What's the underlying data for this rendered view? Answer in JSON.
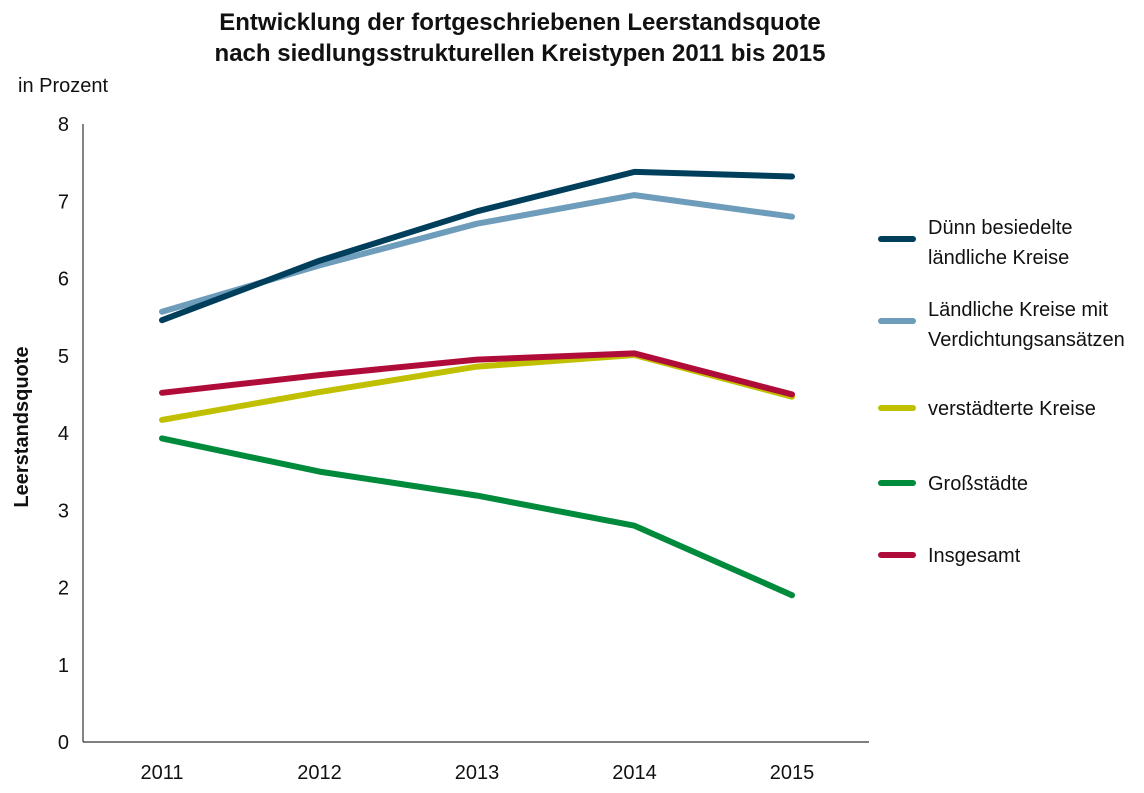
{
  "chart_data": {
    "type": "line",
    "title": [
      "Entwicklung der fortgeschriebenen Leerstandsquote",
      "nach siedlungsstrukturellen Kreistypen 2011 bis 2015"
    ],
    "unit_label": "in Prozent",
    "ylabel": "Leerstandsquote",
    "xlabel": "",
    "x": [
      "2011",
      "2012",
      "2013",
      "2014",
      "2015"
    ],
    "yticks": [
      "0",
      "1",
      "2",
      "3",
      "4",
      "5",
      "6",
      "7",
      "8"
    ],
    "ylim": [
      0,
      8
    ],
    "grid": false,
    "legend_position": "right",
    "series": [
      {
        "name": [
          "Dünn besiedelte",
          "ländliche Kreise"
        ],
        "color": "#003f5c",
        "values": [
          5.46,
          6.23,
          6.87,
          7.38,
          7.32
        ]
      },
      {
        "name": [
          "Ländliche Kreise mit",
          "Verdichtungsansätzen"
        ],
        "color": "#6e9cbb",
        "values": [
          5.57,
          6.17,
          6.71,
          7.08,
          6.8
        ]
      },
      {
        "name": [
          "verstädterte Kreise"
        ],
        "color": "#c0c000",
        "values": [
          4.17,
          4.53,
          4.86,
          5.01,
          4.47
        ]
      },
      {
        "name": [
          "Großstädte"
        ],
        "color": "#008a3c",
        "values": [
          3.93,
          3.5,
          3.19,
          2.8,
          1.9
        ]
      },
      {
        "name": [
          "Insgesamt"
        ],
        "color": "#b00c3a",
        "values": [
          4.52,
          4.75,
          4.95,
          5.03,
          4.5
        ]
      }
    ]
  }
}
